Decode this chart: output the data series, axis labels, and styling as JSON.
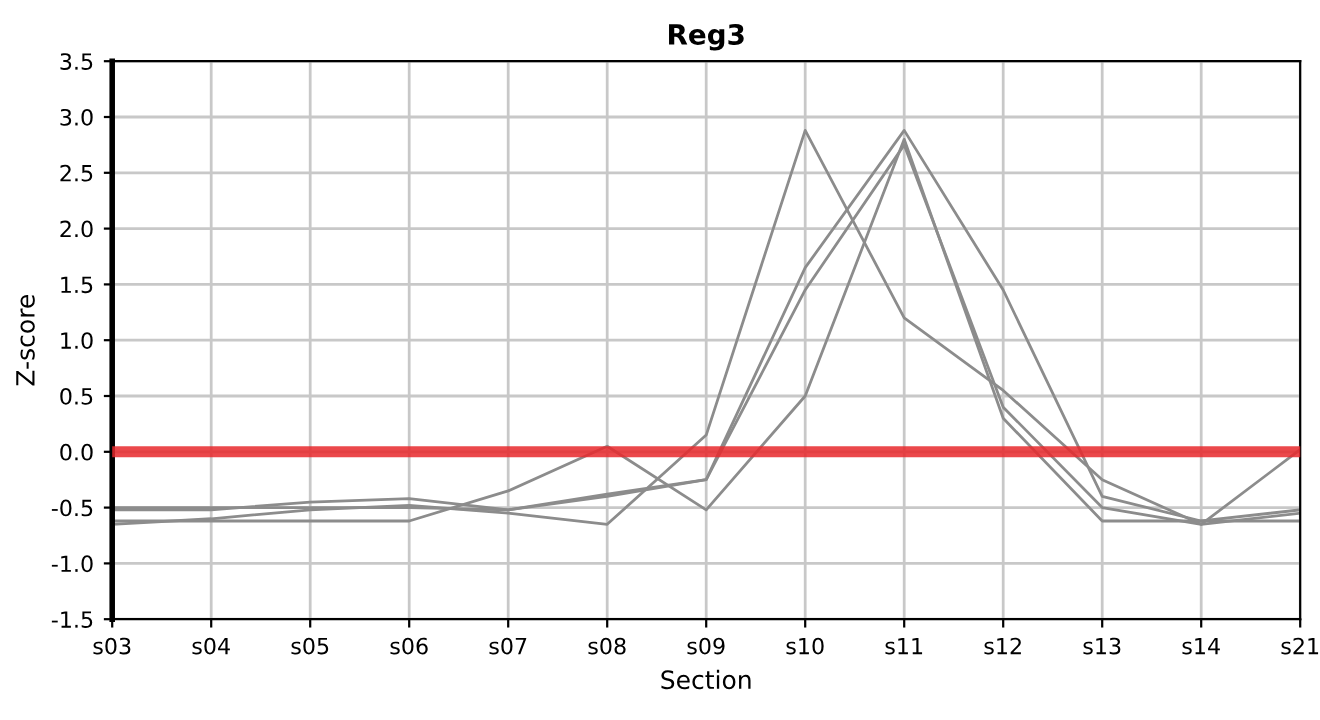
{
  "chart_data": {
    "type": "line",
    "title": "Reg3",
    "xlabel": "Section",
    "ylabel": "Z-score",
    "categories": [
      "s03",
      "s04",
      "s05",
      "s06",
      "s07",
      "s08",
      "s09",
      "s10",
      "s11",
      "s12",
      "s13",
      "s14",
      "s21"
    ],
    "series": [
      {
        "color": "#8c8c8c",
        "values": [
          -0.65,
          -0.6,
          -0.52,
          -0.48,
          -0.55,
          -0.65,
          0.15,
          2.88,
          1.2,
          0.55,
          -0.25,
          -0.65,
          0.02
        ]
      },
      {
        "color": "#8c8c8c",
        "values": [
          -0.52,
          -0.52,
          -0.45,
          -0.42,
          -0.52,
          -0.38,
          -0.25,
          1.65,
          2.88,
          1.45,
          -0.4,
          -0.62,
          -0.52
        ]
      },
      {
        "color": "#8c8c8c",
        "values": [
          -0.5,
          -0.5,
          -0.5,
          -0.5,
          -0.52,
          -0.4,
          -0.25,
          1.45,
          2.75,
          0.4,
          -0.5,
          -0.65,
          -0.55
        ]
      },
      {
        "color": "#8c8c8c",
        "values": [
          -0.62,
          -0.62,
          -0.62,
          -0.62,
          -0.35,
          0.05,
          -0.52,
          0.5,
          2.8,
          0.3,
          -0.62,
          -0.62,
          -0.62
        ]
      }
    ],
    "ylim": [
      -1.5,
      3.5
    ],
    "yticks": [
      {
        "value": -1.5,
        "label": "-1.5"
      },
      {
        "value": -1.0,
        "label": "-1.0"
      },
      {
        "value": -0.5,
        "label": "-0.5"
      },
      {
        "value": 0,
        "label": "0.0"
      },
      {
        "value": 0.5,
        "label": "0.5"
      },
      {
        "value": 1.0,
        "label": "1.0"
      },
      {
        "value": 1.5,
        "label": "1.5"
      },
      {
        "value": 2.0,
        "label": "2.0"
      },
      {
        "value": 2.5,
        "label": "2.5"
      },
      {
        "value": 3.0,
        "label": "3.0"
      },
      {
        "value": 3.5,
        "label": "3.5"
      }
    ],
    "ref_lines": [
      {
        "axis": "y",
        "value": 0,
        "color": "#e8282b"
      }
    ],
    "grid": true,
    "marker": "none",
    "line_style": "solid"
  }
}
